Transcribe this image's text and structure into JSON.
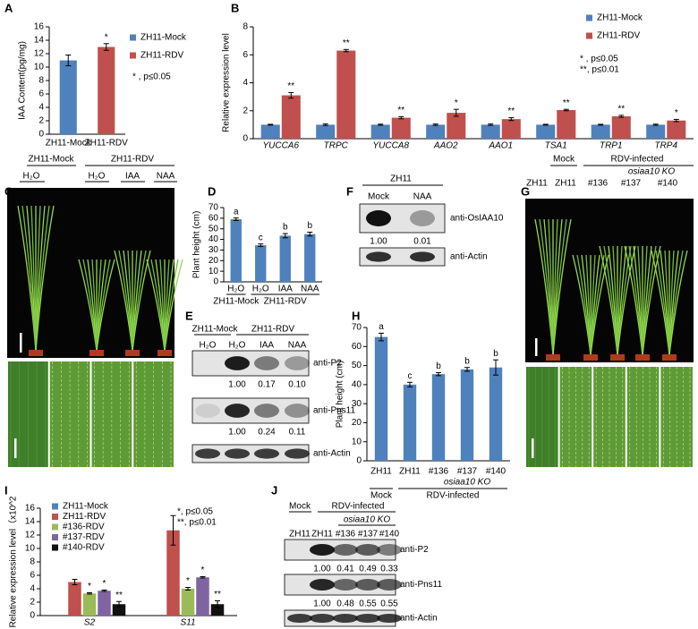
{
  "panel_letters": [
    "A",
    "B",
    "C",
    "D",
    "E",
    "F",
    "G",
    "H",
    "I",
    "J"
  ],
  "chart_data": [
    {
      "type": "bar",
      "ylabel": "IAA Content(pg/mg)",
      "categories": [
        "ZH11-Mock",
        "ZH11-RDV"
      ],
      "values": [
        11,
        13
      ],
      "errors": [
        0.8,
        0.5
      ],
      "colors": [
        "#4f81bd",
        "#c0504d"
      ],
      "legend": [
        "ZH11-Mock",
        "ZH11-RDV"
      ],
      "annotations": [
        null,
        "*"
      ],
      "notes": [
        "* , p≤0.05"
      ],
      "ylim": [
        0,
        16
      ],
      "yticks": [
        0,
        2,
        4,
        6,
        8,
        10,
        12,
        14,
        16
      ]
    },
    {
      "type": "bar",
      "ylabel": "Relative expression level",
      "categories": [
        "YUCCA6",
        "TRPC",
        "YUCCA8",
        "AAO2",
        "AAO1",
        "TSA1",
        "TRP1",
        "TRP4"
      ],
      "series": [
        {
          "name": "ZH11-Mock",
          "color": "#4f81bd",
          "values": [
            1,
            1,
            1,
            1,
            1,
            1,
            1,
            1
          ],
          "errors": [
            0.03,
            0.06,
            0.04,
            0.05,
            0.05,
            0.03,
            0.03,
            0.04
          ]
        },
        {
          "name": "ZH11-RDV",
          "color": "#c0504d",
          "values": [
            3.1,
            6.3,
            1.5,
            1.85,
            1.4,
            2.05,
            1.6,
            1.3
          ],
          "errors": [
            0.2,
            0.08,
            0.08,
            0.25,
            0.1,
            0.05,
            0.07,
            0.08
          ],
          "annotations": [
            "**",
            "**",
            "**",
            "*",
            "**",
            "**",
            "**",
            "*"
          ]
        }
      ],
      "notes": [
        "* , p≤0.05",
        "**,  p≤0.01"
      ],
      "ylim": [
        0,
        8
      ],
      "yticks": [
        0,
        2,
        4,
        6,
        8
      ]
    },
    {
      "type": "bar",
      "ylabel": "Plant height (cm)",
      "categories": [
        "H₂O",
        "H₂O",
        "IAA",
        "NAA"
      ],
      "values": [
        59,
        34.5,
        43.5,
        45
      ],
      "errors": [
        1.2,
        1.2,
        2,
        1.8
      ],
      "colors": [
        "#4f81bd",
        "#4f81bd",
        "#4f81bd",
        "#4f81bd"
      ],
      "annotations": [
        "a",
        "c",
        "b",
        "b"
      ],
      "groups": [
        "ZH11-Mock",
        "ZH11-RDV"
      ],
      "ylim": [
        0,
        70
      ],
      "yticks": [
        0,
        10,
        20,
        30,
        40,
        50,
        60,
        70
      ]
    },
    {
      "type": "bar",
      "ylabel": "Plant height (cm)",
      "categories": [
        "ZH11",
        "ZH11",
        "#136",
        "#137",
        "#140"
      ],
      "values": [
        65,
        40,
        45.5,
        48,
        49
      ],
      "errors": [
        2,
        1.2,
        0.8,
        1,
        4
      ],
      "colors": [
        "#4f81bd",
        "#4f81bd",
        "#4f81bd",
        "#4f81bd",
        "#4f81bd"
      ],
      "annotations": [
        "a",
        "c",
        "b",
        "b",
        "b"
      ],
      "subgroup": "osiaa10 KO",
      "groups": [
        "Mock",
        "RDV-infected"
      ],
      "ylim": [
        0,
        70
      ],
      "yticks": [
        0,
        10,
        20,
        30,
        40,
        50,
        60,
        70
      ]
    },
    {
      "type": "bar",
      "ylabel": "Relative expression level（x10^2",
      "categories": [
        "S2",
        "S11"
      ],
      "series": [
        {
          "name": "ZH11-Mock",
          "color": "#4f81bd",
          "values": [
            0,
            0
          ]
        },
        {
          "name": "ZH11-RDV",
          "color": "#c0504d",
          "values": [
            5,
            12.7
          ],
          "errors": [
            0.4,
            2.2
          ]
        },
        {
          "name": "#136-RDV",
          "color": "#9bbb59",
          "values": [
            3.3,
            4
          ],
          "errors": [
            0.1,
            0.2
          ],
          "annotations": [
            "*",
            "*"
          ]
        },
        {
          "name": "#137-RDV",
          "color": "#8064a2",
          "values": [
            3.7,
            5.7
          ],
          "errors": [
            0.1,
            0.1
          ],
          "annotations": [
            "*",
            "*"
          ]
        },
        {
          "name": "#140-RDV",
          "color": "#111111",
          "values": [
            1.7,
            1.7
          ],
          "errors": [
            0.4,
            0.5
          ],
          "annotations": [
            "**",
            "**"
          ]
        }
      ],
      "notes": [
        "*, p≤0.05",
        "**, p≤0.01"
      ],
      "ylim": [
        0,
        16
      ],
      "yticks": [
        0,
        2,
        4,
        6,
        8,
        10,
        12,
        14,
        16
      ]
    }
  ],
  "photo_c": {
    "groups": [
      "ZH11-Mock",
      "ZH11-RDV"
    ],
    "lanes": [
      "H₂O",
      "H₂O",
      "IAA",
      "NAA"
    ]
  },
  "blot_e": {
    "groups": [
      "ZH11-Mock",
      "ZH11-RDV"
    ],
    "lanes": [
      "H₂O",
      "H₂O",
      "IAA",
      "NAA"
    ],
    "rows": [
      {
        "label": "anti-P2",
        "values": [
          "1.00",
          "0.17",
          "0.10"
        ]
      },
      {
        "label": "anti-Pns11",
        "values": [
          "1.00",
          "0.24",
          "0.11"
        ]
      },
      {
        "label": "anti-Actin"
      }
    ]
  },
  "blot_f": {
    "group": "ZH11",
    "lanes": [
      "Mock",
      "NAA"
    ],
    "rows": [
      {
        "label": "anti-OsIAA10",
        "values": [
          "1.00",
          "0.01"
        ]
      },
      {
        "label": "anti-Actin"
      }
    ]
  },
  "photo_g": {
    "groups": [
      "Mock",
      "RDV-infected"
    ],
    "subgroup": "osiaa10 KO",
    "lanes": [
      "ZH11",
      "ZH11",
      "#136",
      "#137",
      "#140"
    ]
  },
  "blot_j": {
    "groups": [
      "Mock",
      "RDV-infected"
    ],
    "subgroup": "osiaa10 KO",
    "lanes": [
      "ZH11",
      "ZH11",
      "#136",
      "#137",
      "#140"
    ],
    "rows": [
      {
        "label": "anti-P2",
        "values": [
          "1.00",
          "0.41",
          "0.49",
          "0.33"
        ]
      },
      {
        "label": "anti-Pns11",
        "values": [
          "1.00",
          "0.48",
          "0.55",
          "0.55"
        ]
      },
      {
        "label": "anti-Actin"
      }
    ]
  }
}
